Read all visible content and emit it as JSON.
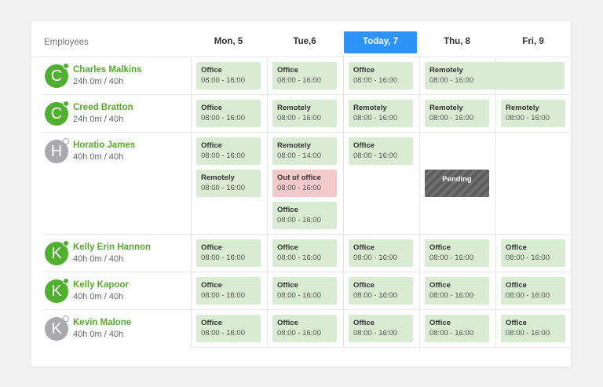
{
  "header": {
    "employees_label": "Employees",
    "days": [
      "Mon, 5",
      "Tue,6",
      "Today, 7",
      "Thu, 8",
      "Fri, 9"
    ]
  },
  "employees": [
    {
      "initial": "C",
      "name": "Charles Malkins",
      "hours": "24h 0m / 40h",
      "shifts": [
        [
          {
            "label": "Office",
            "time": "08:00 - 16:00"
          }
        ],
        [
          {
            "label": "Office",
            "time": "08:00 - 16:00"
          }
        ],
        [
          {
            "label": "Office",
            "time": "08:00 - 16:00"
          }
        ],
        [
          {
            "label": "Remotely",
            "time": "08:00 - 16:00"
          }
        ],
        []
      ]
    },
    {
      "initial": "C",
      "name": "Creed Bratton",
      "hours": "24h 0m / 40h",
      "shifts": [
        [
          {
            "label": "Office",
            "time": "08:00 - 16:00"
          }
        ],
        [
          {
            "label": "Remotely",
            "time": "08:00 - 16:00"
          }
        ],
        [
          {
            "label": "Remotely",
            "time": "08:00 - 16:00"
          }
        ],
        [
          {
            "label": "Remotely",
            "time": "08:00 - 16:00"
          }
        ],
        [
          {
            "label": "Remotely",
            "time": "08:00 - 16:00"
          }
        ]
      ]
    },
    {
      "initial": "H",
      "name": "Horatio James",
      "hours": "40h 0m / 40h",
      "shifts": [
        [
          {
            "label": "Office",
            "time": "08:00 - 16:00"
          },
          {
            "label": "Remotely",
            "time": "08:00 - 16:00"
          }
        ],
        [
          {
            "label": "Remotely",
            "time": "08:00 - 14:00"
          },
          {
            "label": "Out of office",
            "time": "08:00 - 16:00"
          },
          {
            "label": "Office",
            "time": "08:00 - 16:00"
          }
        ],
        [
          {
            "label": "Office",
            "time": "08:00 - 16:00"
          }
        ],
        [
          {
            "label": "Pending"
          }
        ],
        []
      ]
    },
    {
      "initial": "K",
      "name": "Kelly Erin Hannon",
      "hours": "40h 0m / 40h",
      "shifts": [
        [
          {
            "label": "Office",
            "time": "08:00 - 16:00"
          }
        ],
        [
          {
            "label": "Office",
            "time": "08:00 - 16:00"
          }
        ],
        [
          {
            "label": "Office",
            "time": "08:00 - 16:00"
          }
        ],
        [
          {
            "label": "Office",
            "time": "08:00 - 16:00"
          }
        ],
        [
          {
            "label": "Office",
            "time": "08:00 - 16:00"
          }
        ]
      ]
    },
    {
      "initial": "K",
      "name": "Kelly Kapoor",
      "hours": "40h 0m / 40h",
      "shifts": [
        [
          {
            "label": "Office",
            "time": "08:00 - 16:00"
          }
        ],
        [
          {
            "label": "Office",
            "time": "08:00 - 16:00"
          }
        ],
        [
          {
            "label": "Office",
            "time": "08:00 - 16:00"
          }
        ],
        [
          {
            "label": "Office",
            "time": "08:00 - 16:00"
          }
        ],
        [
          {
            "label": "Office",
            "time": "08:00 - 16:00"
          }
        ]
      ]
    },
    {
      "initial": "K",
      "name": "Kevin Malone",
      "hours": "40h 0m / 40h",
      "shifts": [
        [
          {
            "label": "Office",
            "time": "08:00 - 16:00"
          }
        ],
        [
          {
            "label": "Office",
            "time": "08:00 - 16:00"
          }
        ],
        [
          {
            "label": "Office",
            "time": "08:00 - 16:00"
          }
        ],
        [
          {
            "label": "Office",
            "time": "08:00 - 16:00"
          }
        ],
        [
          {
            "label": "Office",
            "time": "08:00 - 16:00"
          }
        ]
      ]
    }
  ]
}
